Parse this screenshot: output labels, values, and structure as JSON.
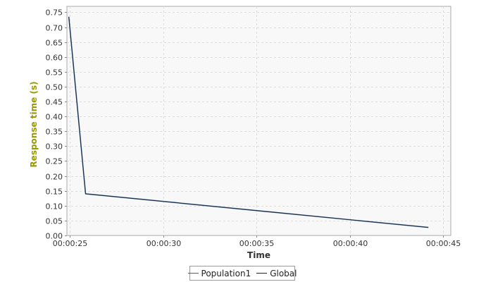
{
  "chart_data": {
    "type": "line",
    "title": "",
    "xlabel": "Time",
    "ylabel": "Response time (s)",
    "x_ticks": [
      "00:00:25",
      "00:00:30",
      "00:00:35",
      "00:00:40",
      "00:00:45"
    ],
    "x_tick_seconds": [
      25,
      30,
      35,
      40,
      45
    ],
    "xlim_seconds": [
      24.85,
      45.4
    ],
    "y_ticks": [
      "0.00",
      "0.05",
      "0.10",
      "0.15",
      "0.20",
      "0.25",
      "0.30",
      "0.35",
      "0.40",
      "0.45",
      "0.50",
      "0.55",
      "0.60",
      "0.65",
      "0.70",
      "0.75"
    ],
    "ylim": [
      0,
      0.77
    ],
    "grid": true,
    "legend_position": "bottom",
    "series": [
      {
        "name": "Population1",
        "color": "#3465a4",
        "x_seconds": [
          24.95,
          25.85,
          44.2
        ],
        "y": [
          0.735,
          0.14,
          0.027
        ]
      },
      {
        "name": "Global",
        "color": "#222222",
        "x_seconds": [
          24.95,
          25.85,
          44.2
        ],
        "y": [
          0.735,
          0.14,
          0.027
        ]
      }
    ]
  },
  "colors": {
    "plot_background": "#f8f8f8",
    "grid": "#dddddd",
    "ylabel": "#999900",
    "xlabel": "#333333"
  }
}
